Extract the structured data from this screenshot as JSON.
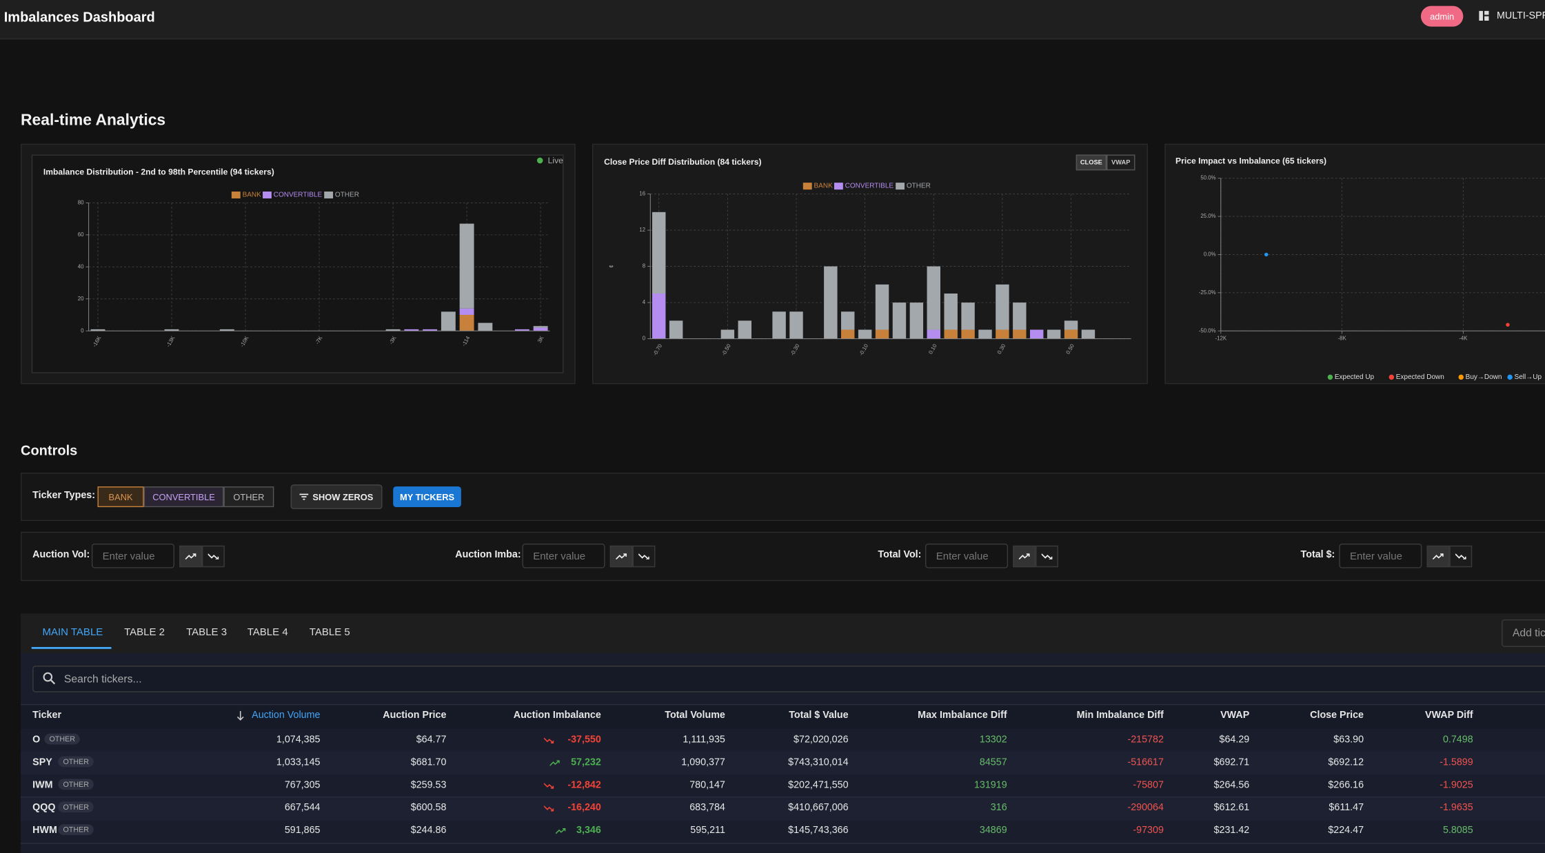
{
  "header": {
    "title": "Imbalances Dashboard",
    "user": "admin",
    "view": "MULTI-SPREAD"
  },
  "analytics": {
    "title": "Real-time Analytics",
    "charts": [
      {
        "type": "bar",
        "stacked": true,
        "title": "Imbalance Distribution - 2nd to 98th Percentile (94 tickers)",
        "status": "Live",
        "categories": [
          "-16K",
          null,
          null,
          null,
          "-13K",
          null,
          null,
          null,
          "-10K",
          null,
          null,
          null,
          "-7K",
          null,
          null,
          null,
          "-3K",
          null,
          null,
          null,
          "-114",
          null,
          null,
          null,
          "3K"
        ],
        "series": [
          {
            "name": "BANK",
            "color": "#c8813a",
            "values": [
              0,
              0,
              0,
              0,
              0,
              0,
              0,
              0,
              0,
              0,
              0,
              0,
              0,
              0,
              0,
              0,
              0,
              0,
              0,
              0,
              10,
              0,
              0,
              0,
              0
            ]
          },
          {
            "name": "CONVERTIBLE",
            "color": "#b58cf0",
            "values": [
              0,
              0,
              0,
              0,
              0,
              0,
              0,
              0,
              0,
              0,
              0,
              0,
              0,
              0,
              0,
              0,
              0,
              1,
              1,
              0,
              4,
              0,
              0,
              1,
              2
            ]
          },
          {
            "name": "OTHER",
            "color": "#a3a8ad",
            "values": [
              1,
              0,
              0,
              0,
              1,
              0,
              0,
              1,
              0,
              0,
              0,
              0,
              0,
              0,
              0,
              0,
              1,
              0,
              0,
              12,
              53,
              5,
              0,
              0,
              1
            ]
          }
        ],
        "ylim": [
          0,
          80
        ],
        "yticks": [
          0,
          20,
          40,
          60,
          80
        ],
        "grid": true
      },
      {
        "type": "bar",
        "stacked": true,
        "title": "Close Price Diff Distribution (84 tickers)",
        "buttons": [
          "CLOSE",
          "VWAP"
        ],
        "y_label": "¢",
        "categories": [
          "-0.70",
          null,
          null,
          null,
          "-0.50",
          null,
          null,
          null,
          "-0.30",
          null,
          null,
          null,
          "-0.10",
          null,
          null,
          null,
          "0.10",
          null,
          null,
          null,
          "0.30",
          null,
          null,
          null,
          "0.50",
          null,
          null,
          null
        ],
        "series": [
          {
            "name": "BANK",
            "color": "#c8813a",
            "values": [
              0,
              0,
              0,
              0,
              0,
              0,
              0,
              0,
              0,
              0,
              0,
              1,
              0,
              1,
              0,
              0,
              0,
              1,
              1,
              0,
              1,
              1,
              0,
              0,
              1,
              0,
              0,
              0
            ]
          },
          {
            "name": "CONVERTIBLE",
            "color": "#b58cf0",
            "values": [
              5,
              0,
              0,
              0,
              0,
              0,
              0,
              0,
              0,
              0,
              0,
              0,
              0,
              0,
              0,
              0,
              1,
              0,
              0,
              0,
              0,
              0,
              1,
              0,
              0,
              0,
              0,
              0
            ]
          },
          {
            "name": "OTHER",
            "color": "#a3a8ad",
            "values": [
              9,
              2,
              0,
              0,
              1,
              2,
              0,
              3,
              3,
              0,
              8,
              2,
              1,
              5,
              4,
              4,
              7,
              4,
              3,
              1,
              5,
              3,
              0,
              1,
              1,
              1,
              0,
              0
            ]
          }
        ],
        "ylim": [
          0,
          16
        ],
        "yticks": [
          0,
          4,
          8,
          12,
          16
        ],
        "grid": true
      },
      {
        "type": "scatter",
        "title": "Price Impact vs Imbalance (65 tickers)",
        "series": [
          {
            "name": "Expected Up",
            "color": "#4caf50",
            "x": [],
            "y": []
          },
          {
            "name": "Expected Down",
            "color": "#f44336",
            "x": [
              -1230,
              -2530
            ],
            "y": [
              -4,
              -46
            ]
          },
          {
            "name": "Buy→Down",
            "color": "#ff9800",
            "x": [],
            "y": []
          },
          {
            "name": "Sell→Up",
            "color": "#2196f3",
            "x": [
              -10500
            ],
            "y": [
              0
            ]
          }
        ],
        "xlim": [
          -12000,
          0
        ],
        "xticks": [
          {
            "value": -12000,
            "label": "-12K"
          },
          {
            "value": -8000,
            "label": "-8K"
          },
          {
            "value": -4000,
            "label": "-4K"
          }
        ],
        "ylim": [
          -50,
          50
        ],
        "yticks": [
          {
            "value": 50,
            "label": "50.0%"
          },
          {
            "value": 25,
            "label": "25.0%"
          },
          {
            "value": 0,
            "label": "0.0%"
          },
          {
            "value": -25,
            "label": "-25.0%"
          },
          {
            "value": -50,
            "label": "-50.0%"
          }
        ],
        "grid": true
      }
    ]
  },
  "controls": {
    "title": "Controls",
    "ticker_types_label": "Ticker Types:",
    "ticker_types": [
      "BANK",
      "CONVERTIBLE",
      "OTHER"
    ],
    "show_zeros": "SHOW ZEROS",
    "my_tickers": "MY TICKERS",
    "filters": [
      {
        "label": "Auction Vol:",
        "placeholder": "Enter value"
      },
      {
        "label": "Auction Imba:",
        "placeholder": "Enter value"
      },
      {
        "label": "Total Vol:",
        "placeholder": "Enter value"
      },
      {
        "label": "Total $:",
        "placeholder": "Enter value"
      }
    ]
  },
  "tabs": [
    "MAIN TABLE",
    "TABLE 2",
    "TABLE 3",
    "TABLE 4",
    "TABLE 5"
  ],
  "add_ticker": "Add ticker",
  "search_placeholder": "Search tickers...",
  "table": {
    "columns": [
      "Ticker",
      "Auction Volume",
      "Auction Price",
      "Auction Imbalance",
      "Total Volume",
      "Total $ Value",
      "Max Imbalance Diff",
      "Min Imbalance Diff",
      "VWAP",
      "Close Price",
      "VWAP Diff"
    ],
    "rows": [
      {
        "ticker": "O",
        "type": "OTHER",
        "values": [
          "1,074,385",
          "$64.77",
          "-37,550",
          "1,111,935",
          "$72,020,026",
          "13302",
          "-215782",
          "$64.29",
          "$63.90",
          "0.7498"
        ]
      },
      {
        "ticker": "SPY",
        "type": "OTHER",
        "values": [
          "1,033,145",
          "$681.70",
          "57,232",
          "1,090,377",
          "$743,310,014",
          "84557",
          "-516617",
          "$692.71",
          "$692.12",
          "-1.5899"
        ]
      },
      {
        "ticker": "IWM",
        "type": "OTHER",
        "values": [
          "767,305",
          "$259.53",
          "-12,842",
          "780,147",
          "$202,471,550",
          "131919",
          "-75807",
          "$264.56",
          "$266.16",
          "-1.9025"
        ]
      },
      {
        "ticker": "QQQ",
        "type": "OTHER",
        "values": [
          "667,544",
          "$600.58",
          "-16,240",
          "683,784",
          "$410,667,006",
          "316",
          "-290064",
          "$612.61",
          "$611.47",
          "-1.9635"
        ]
      },
      {
        "ticker": "HWM",
        "type": "OTHER",
        "values": [
          "591,865",
          "$244.86",
          "3,346",
          "595,211",
          "$145,743,366",
          "34869",
          "-97309",
          "$231.42",
          "$224.47",
          "5.8085"
        ]
      }
    ]
  }
}
